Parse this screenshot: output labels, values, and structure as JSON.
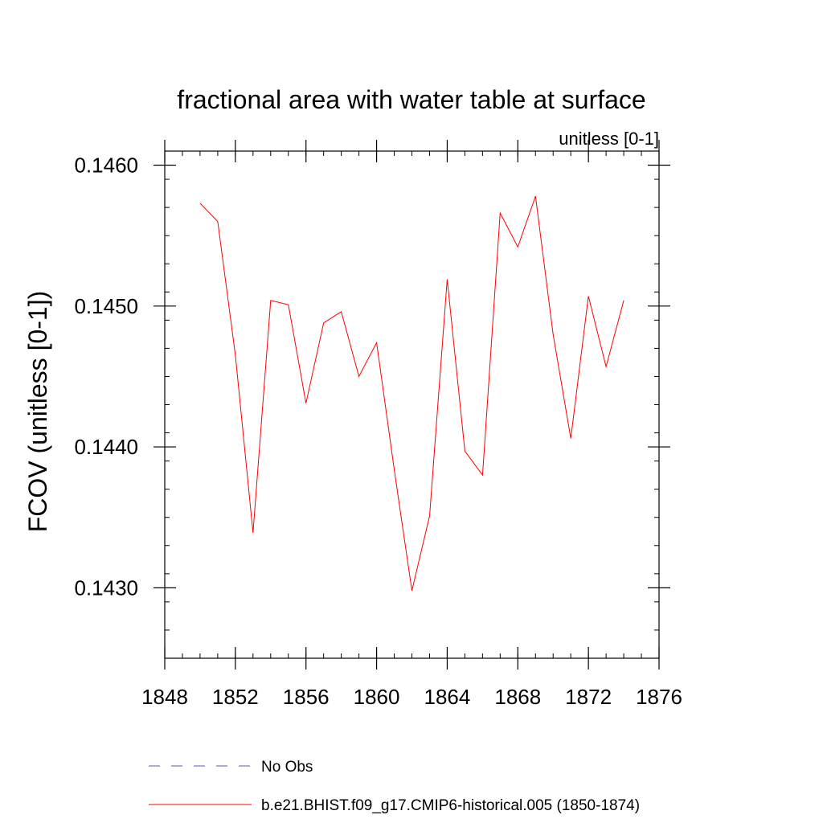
{
  "chart_data": {
    "type": "line",
    "title": "fractional area with water table at surface",
    "subtitle": "unitless [0-1]",
    "ylabel": "FCOV  (unitless [0-1])",
    "xlabel": "",
    "xlim": [
      1848,
      1876
    ],
    "ylim": [
      0.1425,
      0.1461
    ],
    "xticks": [
      1848,
      1852,
      1856,
      1860,
      1864,
      1868,
      1872,
      1876
    ],
    "xtick_labels": [
      "1848",
      "1852",
      "1856",
      "1860",
      "1864",
      "1868",
      "1872",
      "1876"
    ],
    "xminor_step": 1,
    "yticks": [
      0.143,
      0.144,
      0.145,
      0.146
    ],
    "ytick_labels": [
      "0.1430",
      "0.1440",
      "0.1450",
      "0.1460"
    ],
    "yminor_step": 0.0002,
    "grid": false,
    "series": [
      {
        "name": "b.e21.BHIST.f09_g17.CMIP6-historical.005 (1850-1874)",
        "color": "#ff0000",
        "style": "solid",
        "x": [
          1850,
          1851,
          1852,
          1853,
          1854,
          1855,
          1856,
          1857,
          1858,
          1859,
          1860,
          1861,
          1862,
          1863,
          1864,
          1865,
          1866,
          1867,
          1868,
          1869,
          1870,
          1871,
          1872,
          1873,
          1874
        ],
        "values": [
          0.14573,
          0.1456,
          0.14465,
          0.14339,
          0.14504,
          0.14501,
          0.14431,
          0.14488,
          0.14496,
          0.1445,
          0.14474,
          0.14384,
          0.14298,
          0.14351,
          0.14519,
          0.14397,
          0.1438,
          0.14566,
          0.14542,
          0.14578,
          0.1448,
          0.14406,
          0.14507,
          0.14457,
          0.14504
        ]
      }
    ],
    "legend": [
      {
        "label": "No Obs",
        "color": "#5a4fcf",
        "style": "dashed"
      },
      {
        "label": "b.e21.BHIST.f09_g17.CMIP6-historical.005 (1850-1874)",
        "color": "#ff0000",
        "style": "solid"
      }
    ]
  }
}
